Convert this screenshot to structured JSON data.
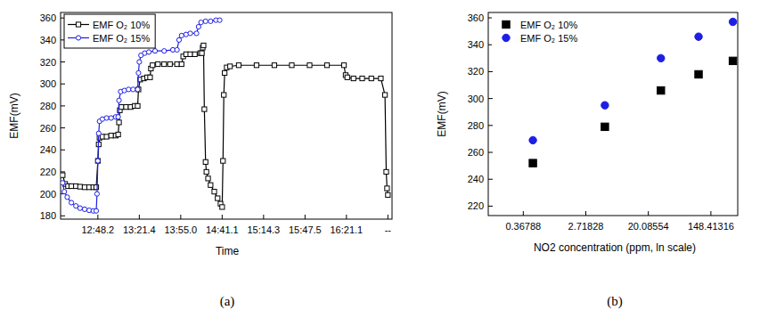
{
  "chart_data": [
    {
      "type": "line",
      "title": "(a)",
      "x_label": "Time",
      "y_label": "EMF(mV)",
      "xlim": [
        0.1,
        8.1
      ],
      "ylim": [
        177,
        365
      ],
      "xticks": [
        {
          "value": 1,
          "label": "12:48.2"
        },
        {
          "value": 2,
          "label": "13:21.4"
        },
        {
          "value": 3,
          "label": "13:55.0"
        },
        {
          "value": 4,
          "label": "14:41.1"
        },
        {
          "value": 5,
          "label": "15:14.3"
        },
        {
          "value": 6,
          "label": "15:47.5"
        },
        {
          "value": 7,
          "label": "16:21.1"
        },
        {
          "value": 8,
          "label": "--"
        }
      ],
      "yticks": [
        180,
        200,
        220,
        240,
        260,
        280,
        300,
        320,
        340,
        360
      ],
      "grid": false,
      "legend": "upper-left",
      "series": [
        {
          "name": "EMF O₂ 10%",
          "color": "#000000",
          "marker": "square",
          "line_style": "solid",
          "x": [
            0.15,
            0.21,
            0.28,
            0.36,
            0.47,
            0.57,
            0.68,
            0.79,
            0.89,
            0.96,
            1.0,
            1.02,
            1.04,
            1.11,
            1.21,
            1.32,
            1.43,
            1.49,
            1.51,
            1.53,
            1.57,
            1.68,
            1.79,
            1.89,
            1.96,
            1.98,
            2.02,
            2.11,
            2.19,
            2.26,
            2.28,
            2.32,
            2.45,
            2.6,
            2.74,
            2.91,
            3.02,
            3.06,
            3.13,
            3.23,
            3.34,
            3.47,
            3.51,
            3.53,
            3.55,
            3.57,
            3.6,
            3.62,
            3.66,
            3.72,
            3.81,
            3.89,
            3.96,
            4.0,
            4.02,
            4.04,
            4.06,
            4.11,
            4.19,
            4.4,
            4.83,
            5.26,
            5.68,
            6.11,
            6.53,
            6.94,
            6.98,
            7.02,
            7.17,
            7.38,
            7.6,
            7.83,
            7.93,
            7.96,
            7.98,
            8.0
          ],
          "values": [
            217,
            209,
            207,
            207,
            207,
            206.5,
            206,
            206,
            206,
            206,
            230,
            245,
            251,
            252,
            252,
            253,
            253,
            254,
            265,
            276,
            279,
            279,
            279,
            280,
            280,
            295,
            304,
            305,
            306,
            306,
            314,
            317,
            318,
            318,
            318,
            318,
            318,
            325,
            327,
            327,
            327,
            328,
            328,
            333,
            335,
            277,
            229,
            220,
            214,
            208,
            202,
            196,
            191,
            188,
            230,
            290,
            310,
            315,
            316,
            317,
            317,
            317,
            317,
            317,
            317,
            317,
            308,
            306,
            305,
            305,
            305,
            305,
            290,
            220,
            205,
            199
          ]
        },
        {
          "name": "EMF O₂ 15%",
          "color": "#1e1ee6",
          "marker": "circle",
          "line_style": "solid",
          "x": [
            0.15,
            0.19,
            0.26,
            0.36,
            0.47,
            0.57,
            0.68,
            0.79,
            0.89,
            0.96,
            0.98,
            1.0,
            1.02,
            1.04,
            1.11,
            1.21,
            1.32,
            1.43,
            1.49,
            1.51,
            1.55,
            1.64,
            1.74,
            1.85,
            1.96,
            1.98,
            2.0,
            2.04,
            2.13,
            2.23,
            2.38,
            2.6,
            2.81,
            2.91,
            2.96,
            3.02,
            3.13,
            3.23,
            3.38,
            3.43,
            3.49,
            3.6,
            3.72,
            3.85,
            3.94
          ],
          "values": [
            210,
            202,
            197,
            192,
            189,
            187,
            186,
            185,
            184.5,
            184.5,
            200,
            230,
            255,
            266,
            268,
            269,
            269,
            270,
            270,
            285,
            293,
            294,
            295,
            295,
            295,
            310,
            320,
            326,
            328,
            329,
            330,
            330,
            331,
            331,
            340,
            344,
            345,
            346,
            346,
            352,
            356,
            357,
            357,
            358,
            358
          ]
        }
      ]
    },
    {
      "type": "scatter",
      "title": "(b)",
      "x_label": "NO2 concentration (ppm, ln scale)",
      "y_label": "EMF(mV)",
      "log": "x",
      "xlim": [
        0.12,
        350
      ],
      "ylim": [
        213,
        364
      ],
      "xticks": [
        0.36788,
        2.71828,
        20.08554,
        148.41316
      ],
      "yticks": [
        220,
        240,
        260,
        280,
        300,
        320,
        340,
        360
      ],
      "grid": false,
      "legend": "upper-left",
      "series": [
        {
          "name": "EMF O₂ 10%",
          "color": "#000000",
          "marker": "square",
          "x": [
            0.5,
            5,
            30,
            100,
            300
          ],
          "values": [
            252,
            279,
            306,
            318,
            328
          ]
        },
        {
          "name": "EMF O₂ 15%",
          "color": "#1e1ee6",
          "marker": "circle",
          "x": [
            0.5,
            5,
            30,
            100,
            300
          ],
          "values": [
            269,
            295,
            330,
            346,
            357
          ]
        }
      ]
    }
  ]
}
